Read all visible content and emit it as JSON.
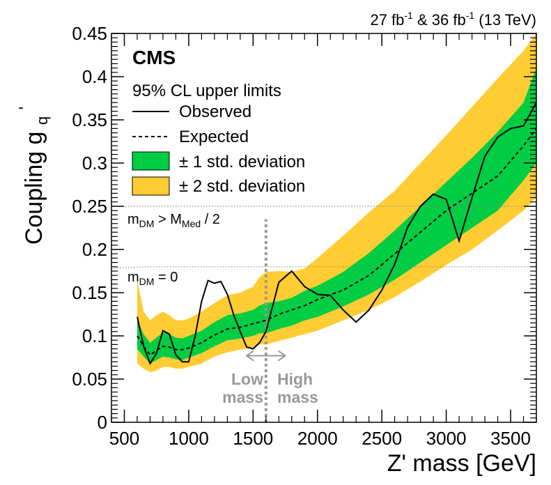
{
  "chart_data": {
    "type": "line",
    "xlabel": "Z' mass [GeV]",
    "ylabel": "Coupling g",
    "ylabel_sub": "q",
    "ylabel_sup": "'",
    "xlim": [
      400,
      3700
    ],
    "ylim": [
      0,
      0.45
    ],
    "x_ticks": [
      500,
      1000,
      1500,
      2000,
      2500,
      3000,
      3500
    ],
    "y_ticks": [
      0,
      0.05,
      0.1,
      0.15,
      0.2,
      0.25,
      0.3,
      0.35,
      0.4,
      0.45
    ],
    "x_tick_labels": [
      "500",
      "1000",
      "1500",
      "2000",
      "2500",
      "3000",
      "3500"
    ],
    "y_tick_labels": [
      "0",
      "0.05",
      "0.1",
      "0.15",
      "0.2",
      "0.25",
      "0.3",
      "0.35",
      "0.4",
      "0.45"
    ],
    "colors": {
      "band_1sigma": "#00cc44",
      "band_2sigma": "#ffcc33",
      "observed": "#000000",
      "expected": "#000000",
      "reference_lines": "#888888",
      "mass_divider": "#999999"
    },
    "series": [
      {
        "name": "Observed",
        "style": "solid",
        "x": [
          600,
          650,
          700,
          750,
          800,
          850,
          900,
          950,
          1000,
          1050,
          1100,
          1150,
          1200,
          1250,
          1300,
          1350,
          1400,
          1450,
          1500,
          1550,
          1600,
          1700,
          1800,
          1900,
          2000,
          2100,
          2200,
          2300,
          2400,
          2500,
          2600,
          2700,
          2800,
          2900,
          3000,
          3100,
          3200,
          3300,
          3400,
          3500,
          3600,
          3700
        ],
        "y": [
          0.122,
          0.088,
          0.068,
          0.08,
          0.106,
          0.102,
          0.078,
          0.07,
          0.07,
          0.1,
          0.14,
          0.164,
          0.161,
          0.163,
          0.148,
          0.124,
          0.105,
          0.087,
          0.085,
          0.092,
          0.105,
          0.162,
          0.175,
          0.157,
          0.148,
          0.147,
          0.13,
          0.116,
          0.13,
          0.153,
          0.183,
          0.226,
          0.25,
          0.264,
          0.258,
          0.21,
          0.26,
          0.308,
          0.33,
          0.34,
          0.343,
          0.37
        ]
      },
      {
        "name": "Expected",
        "style": "dashed",
        "x": [
          600,
          650,
          700,
          750,
          800,
          850,
          900,
          950,
          1000,
          1100,
          1200,
          1300,
          1400,
          1500,
          1600,
          1700,
          1800,
          1900,
          2000,
          2200,
          2400,
          2600,
          2800,
          3000,
          3200,
          3400,
          3600,
          3700
        ],
        "y": [
          0.1,
          0.088,
          0.078,
          0.083,
          0.088,
          0.087,
          0.084,
          0.084,
          0.086,
          0.092,
          0.101,
          0.108,
          0.11,
          0.114,
          0.118,
          0.125,
          0.13,
          0.135,
          0.142,
          0.153,
          0.17,
          0.195,
          0.22,
          0.245,
          0.265,
          0.285,
          0.32,
          0.34
        ]
      }
    ],
    "bands": [
      {
        "name": "± 2 std. deviation",
        "x": [
          600,
          650,
          700,
          750,
          800,
          850,
          900,
          950,
          1000,
          1100,
          1200,
          1300,
          1400,
          1500,
          1550,
          1600,
          1700,
          1800,
          1900,
          2000,
          2200,
          2400,
          2600,
          2800,
          3000,
          3200,
          3400,
          3600,
          3700
        ],
        "low": [
          0.068,
          0.062,
          0.058,
          0.06,
          0.064,
          0.064,
          0.062,
          0.062,
          0.064,
          0.068,
          0.076,
          0.081,
          0.084,
          0.087,
          0.09,
          0.09,
          0.094,
          0.098,
          0.102,
          0.106,
          0.118,
          0.13,
          0.145,
          0.163,
          0.182,
          0.2,
          0.222,
          0.245,
          0.26
        ],
        "high": [
          0.165,
          0.128,
          0.118,
          0.124,
          0.128,
          0.124,
          0.118,
          0.118,
          0.12,
          0.128,
          0.138,
          0.147,
          0.15,
          0.157,
          0.168,
          0.174,
          0.175,
          0.174,
          0.178,
          0.19,
          0.216,
          0.243,
          0.268,
          0.3,
          0.332,
          0.365,
          0.398,
          0.43,
          0.45
        ]
      },
      {
        "name": "± 1 std. deviation",
        "x": [
          600,
          650,
          700,
          750,
          800,
          850,
          900,
          950,
          1000,
          1100,
          1200,
          1300,
          1400,
          1500,
          1550,
          1600,
          1700,
          1800,
          1900,
          2000,
          2200,
          2400,
          2600,
          2800,
          3000,
          3200,
          3400,
          3600,
          3700
        ],
        "low": [
          0.085,
          0.076,
          0.068,
          0.072,
          0.076,
          0.075,
          0.073,
          0.072,
          0.075,
          0.08,
          0.088,
          0.095,
          0.097,
          0.1,
          0.103,
          0.103,
          0.108,
          0.112,
          0.118,
          0.122,
          0.134,
          0.148,
          0.165,
          0.185,
          0.205,
          0.225,
          0.245,
          0.28,
          0.3
        ],
        "high": [
          0.118,
          0.102,
          0.092,
          0.098,
          0.104,
          0.102,
          0.098,
          0.097,
          0.1,
          0.106,
          0.116,
          0.124,
          0.126,
          0.13,
          0.135,
          0.138,
          0.14,
          0.144,
          0.152,
          0.158,
          0.174,
          0.196,
          0.222,
          0.25,
          0.278,
          0.306,
          0.336,
          0.37,
          0.41
        ]
      }
    ],
    "reference_lines": [
      {
        "label_main": "m",
        "label_sub1": "DM",
        "label_mid": " > M",
        "label_sub2": "Med",
        "label_tail": " / 2",
        "x": [
          400,
          1000,
          1500,
          2000,
          2500,
          3000,
          3700
        ],
        "y": [
          0.25,
          0.25,
          0.25,
          0.25,
          0.25,
          0.25,
          0.25
        ]
      },
      {
        "label_main": "m",
        "label_sub1": "DM",
        "label_mid": " = 0",
        "label_sub2": "",
        "label_tail": "",
        "x": [
          400,
          500,
          700,
          1000,
          1500,
          2000,
          2500,
          3000,
          3500,
          3700
        ],
        "y": [
          0.178,
          0.179,
          0.18,
          0.18,
          0.18,
          0.18,
          0.18,
          0.18,
          0.18,
          0.18
        ]
      }
    ],
    "mass_divider_x": 1600,
    "mass_divider_ymax": 0.235,
    "arrow_y": 0.077,
    "arrow_x": [
      1450,
      1750
    ],
    "low_mass_label": [
      "Low",
      "mass"
    ],
    "high_mass_label": [
      "High",
      "mass"
    ]
  },
  "header": {
    "cms": "CMS",
    "lumi_a": "27 fb",
    "lumi_a_sup": "-1",
    "lumi_mid": " & 36 fb",
    "lumi_b_sup": "-1",
    "lumi_tail": " (13 TeV)"
  },
  "legend": {
    "title": "95% CL upper limits",
    "observed": "Observed",
    "expected": "Expected",
    "band1": "± 1 std. deviation",
    "band2": "± 2 std. deviation"
  }
}
